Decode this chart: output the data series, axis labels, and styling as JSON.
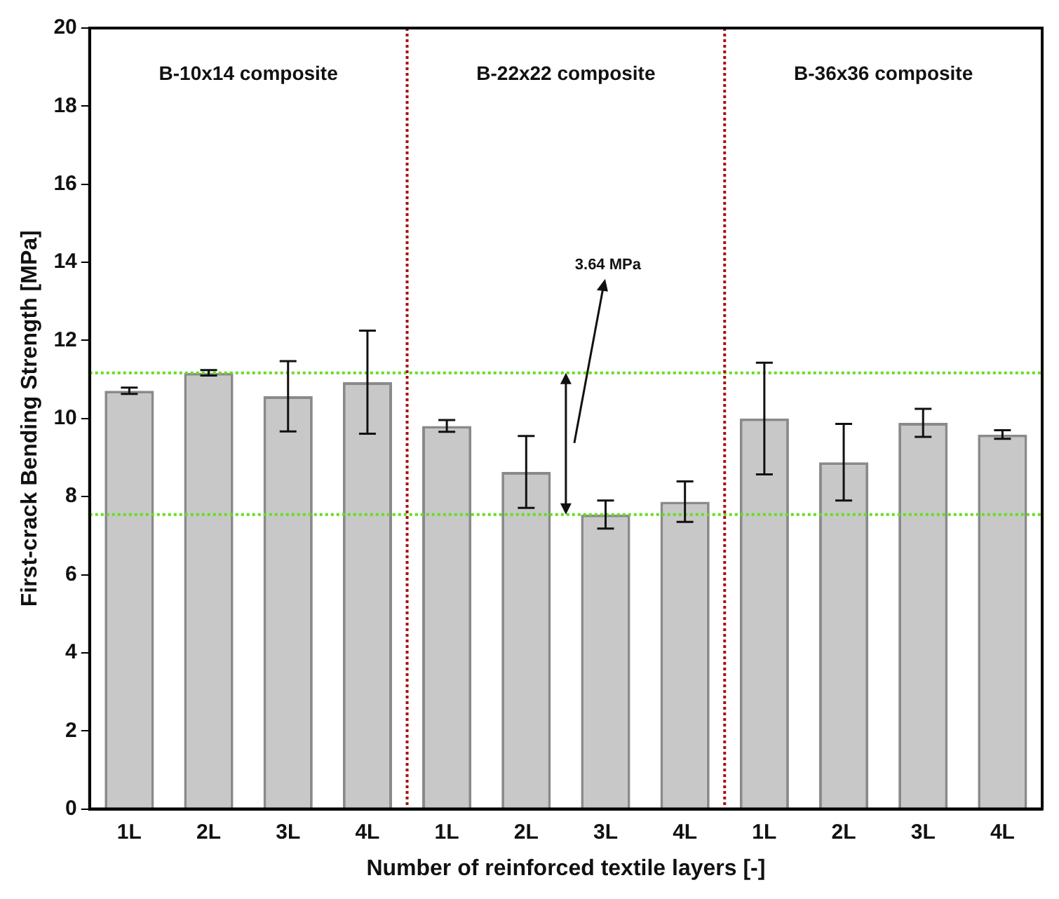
{
  "chart_data": {
    "type": "bar",
    "xlabel": "Number of reinforced textile layers [-]",
    "ylabel": "First-crack Bending Strength [MPa]",
    "categories": [
      "1L",
      "2L",
      "3L",
      "4L",
      "1L",
      "2L",
      "3L",
      "4L",
      "1L",
      "2L",
      "3L",
      "4L"
    ],
    "values": [
      10.71,
      11.17,
      10.57,
      10.93,
      9.81,
      8.63,
      7.54,
      7.87,
      10.0,
      8.88,
      9.89,
      9.59
    ],
    "errors": [
      0.08,
      0.07,
      0.9,
      1.32,
      0.15,
      0.92,
      0.36,
      0.52,
      1.43,
      0.98,
      0.36,
      0.11
    ],
    "color": "#c8c8c8",
    "ylim": [
      0,
      20
    ],
    "yticks": [
      0,
      2,
      4,
      6,
      8,
      10,
      12,
      14,
      16,
      18,
      20
    ],
    "grid": false,
    "legend": false,
    "ref_lines": [
      {
        "axis": "y",
        "value": 11.17,
        "color": "#66dd22",
        "line_style": "dotted"
      },
      {
        "axis": "y",
        "value": 7.54,
        "color": "#66dd22",
        "line_style": "dotted"
      }
    ],
    "annotations": [
      "B-10x14 composite",
      "B-22x22 composite",
      "B-36x36 composite",
      "3.64 MPa"
    ]
  }
}
